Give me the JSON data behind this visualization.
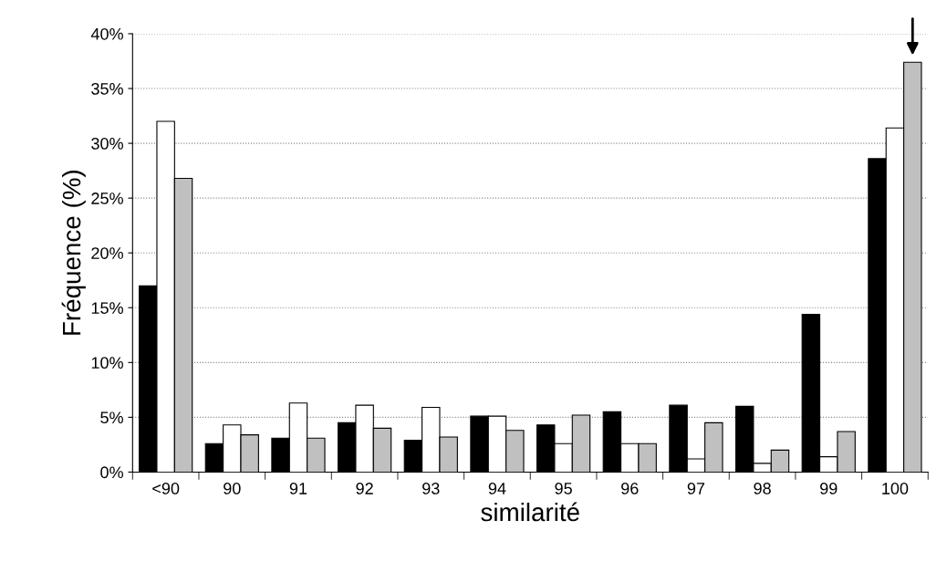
{
  "chart_data": {
    "type": "bar",
    "xlabel": "similarité",
    "ylabel": "Fréquence (%)",
    "categories": [
      "<90",
      "90",
      "91",
      "92",
      "93",
      "94",
      "95",
      "96",
      "97",
      "98",
      "99",
      "100"
    ],
    "series": [
      {
        "color": "#000000",
        "values": [
          17.0,
          2.6,
          3.1,
          4.5,
          2.9,
          5.1,
          4.3,
          5.5,
          6.1,
          6.0,
          14.4,
          28.6
        ]
      },
      {
        "color": "#ffffff",
        "values": [
          32.0,
          4.3,
          6.3,
          6.1,
          5.9,
          5.1,
          2.6,
          2.6,
          1.2,
          0.8,
          1.4,
          31.4
        ]
      },
      {
        "color": "#c0c0c0",
        "values": [
          26.8,
          3.4,
          3.1,
          4.0,
          3.2,
          3.8,
          5.2,
          2.6,
          4.5,
          2.0,
          3.7,
          37.4
        ]
      }
    ],
    "ylim": [
      0,
      40
    ],
    "yticks": [
      {
        "value": 0,
        "label": "0%"
      },
      {
        "value": 5,
        "label": "5%"
      },
      {
        "value": 10,
        "label": "10%"
      },
      {
        "value": 15,
        "label": "15%"
      },
      {
        "value": 20,
        "label": "20%"
      },
      {
        "value": 25,
        "label": "25%"
      },
      {
        "value": 30,
        "label": "30%"
      },
      {
        "value": 35,
        "label": "35%"
      },
      {
        "value": 40,
        "label": "40%"
      }
    ],
    "grid": "y",
    "legend": false
  }
}
